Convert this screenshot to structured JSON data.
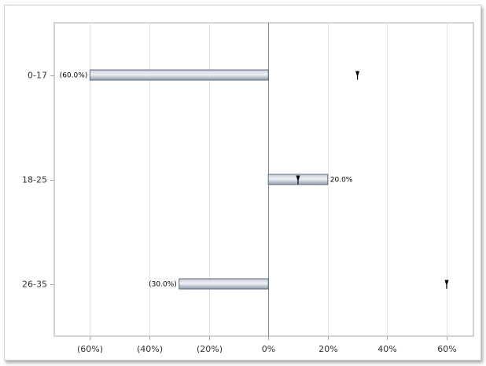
{
  "chart_data": {
    "type": "bar",
    "orientation": "horizontal",
    "categories": [
      "0-17",
      "18-25",
      "26-35"
    ],
    "values": [
      -60,
      20,
      -30
    ],
    "value_labels": [
      "(60.0%)",
      "20.0%",
      "(30.0%)"
    ],
    "markers": [
      30,
      10,
      60
    ],
    "xlim": [
      -72,
      69
    ],
    "xticks": [
      -60,
      -40,
      -20,
      0,
      20,
      40,
      60
    ],
    "xtick_labels": [
      "(60%)",
      "(40%)",
      "(20%)",
      "0%",
      "20%",
      "40%",
      "60%"
    ],
    "grid": true,
    "title": "",
    "xlabel": "",
    "ylabel": "",
    "colors": {
      "bar_fill_light": "#dde3ec",
      "bar_fill_dark": "#9aa5b8",
      "bar_stroke": "#5f6a80",
      "grid": "#e2e2e2",
      "zero_line": "#888888",
      "axis": "#a8a8a8",
      "marker": "#000000"
    }
  }
}
